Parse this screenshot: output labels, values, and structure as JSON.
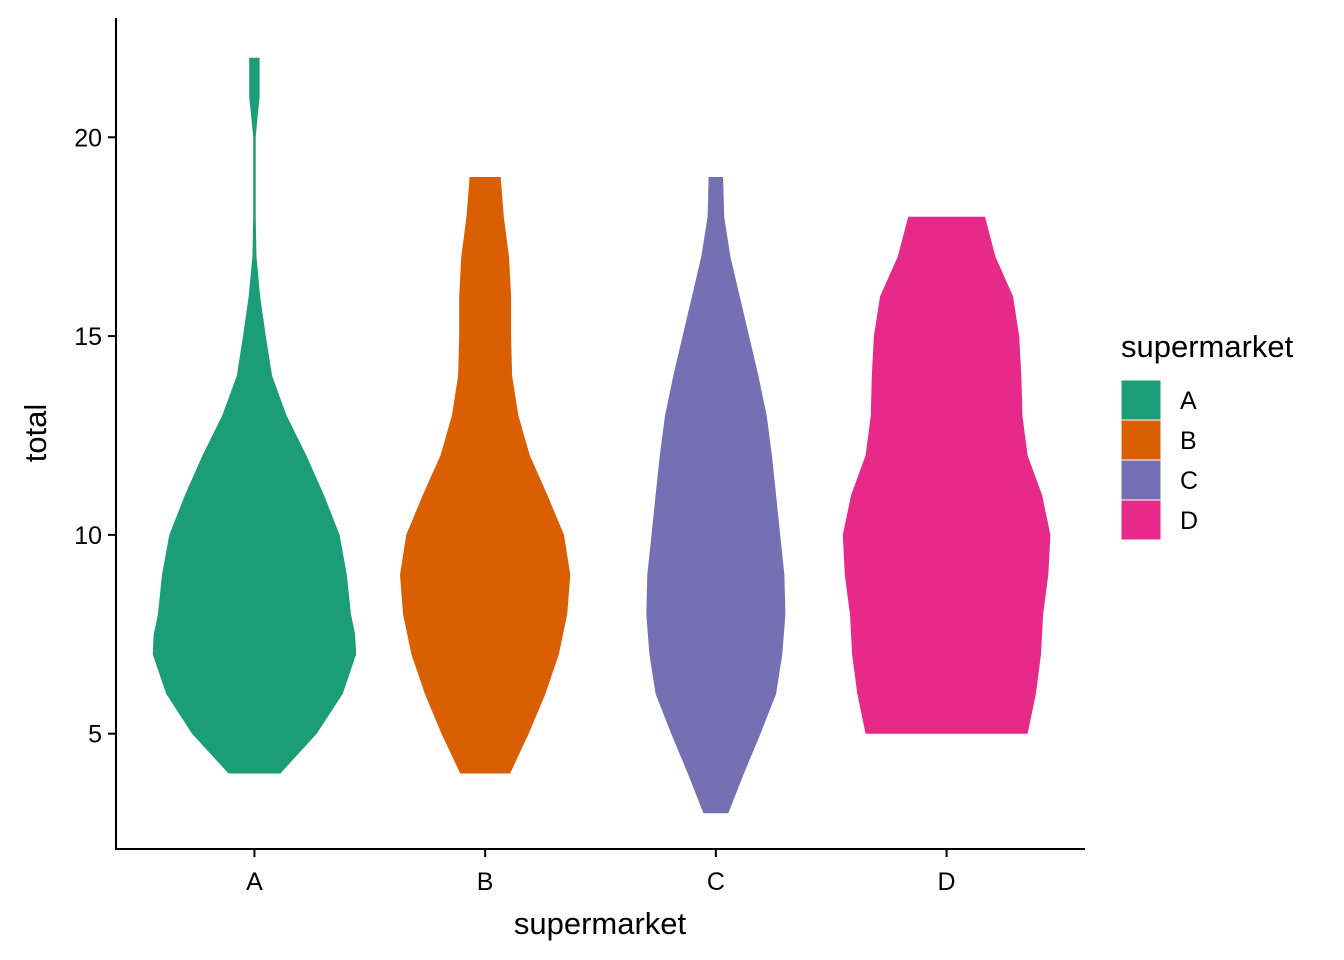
{
  "chart_data": {
    "type": "violin",
    "xlabel": "supermarket",
    "ylabel": "total",
    "categories": [
      "A",
      "B",
      "C",
      "D"
    ],
    "ylim": [
      2.1,
      23.0
    ],
    "yticks": [
      5,
      10,
      15,
      20
    ],
    "grid": false,
    "legend": {
      "title": "supermarket",
      "placement": "right",
      "entries": [
        "A",
        "B",
        "C",
        "D"
      ]
    },
    "colors": {
      "A": "#1B9E77",
      "B": "#D95F02",
      "C": "#7570B3",
      "D": "#E7298A"
    },
    "series": [
      {
        "category": "A",
        "min": 4,
        "max": 22,
        "profile": [
          [
            4,
            0.25
          ],
          [
            5,
            0.6
          ],
          [
            6,
            0.85
          ],
          [
            7,
            0.98
          ],
          [
            7.5,
            0.97
          ],
          [
            8,
            0.93
          ],
          [
            9,
            0.89
          ],
          [
            10,
            0.82
          ],
          [
            11,
            0.67
          ],
          [
            12,
            0.5
          ],
          [
            13,
            0.31
          ],
          [
            14,
            0.17
          ],
          [
            15,
            0.11
          ],
          [
            16,
            0.055
          ],
          [
            17,
            0.02
          ],
          [
            18,
            0.012
          ],
          [
            19,
            0.012
          ],
          [
            20,
            0.012
          ],
          [
            20.5,
            0.03
          ],
          [
            21,
            0.05
          ],
          [
            22,
            0.05
          ]
        ]
      },
      {
        "category": "B",
        "min": 4,
        "max": 19,
        "profile": [
          [
            4,
            0.24
          ],
          [
            5,
            0.42
          ],
          [
            6,
            0.58
          ],
          [
            7,
            0.71
          ],
          [
            8,
            0.79
          ],
          [
            9,
            0.82
          ],
          [
            10,
            0.76
          ],
          [
            11,
            0.6
          ],
          [
            12,
            0.43
          ],
          [
            13,
            0.32
          ],
          [
            14,
            0.26
          ],
          [
            15,
            0.25
          ],
          [
            16,
            0.25
          ],
          [
            17,
            0.23
          ],
          [
            18,
            0.18
          ],
          [
            19,
            0.15
          ]
        ]
      },
      {
        "category": "C",
        "min": 3,
        "max": 19,
        "profile": [
          [
            3,
            0.12
          ],
          [
            4,
            0.27
          ],
          [
            5,
            0.43
          ],
          [
            6,
            0.58
          ],
          [
            7,
            0.64
          ],
          [
            8,
            0.67
          ],
          [
            9,
            0.66
          ],
          [
            10,
            0.62
          ],
          [
            11,
            0.58
          ],
          [
            12,
            0.54
          ],
          [
            13,
            0.49
          ],
          [
            14,
            0.41
          ],
          [
            15,
            0.32
          ],
          [
            16,
            0.23
          ],
          [
            17,
            0.14
          ],
          [
            18,
            0.08
          ],
          [
            19,
            0.07
          ]
        ]
      },
      {
        "category": "D",
        "min": 5,
        "max": 18,
        "profile": [
          [
            5,
            0.78
          ],
          [
            6,
            0.86
          ],
          [
            7,
            0.91
          ],
          [
            8,
            0.93
          ],
          [
            9,
            0.98
          ],
          [
            10,
            1.0
          ],
          [
            11,
            0.92
          ],
          [
            12,
            0.78
          ],
          [
            13,
            0.73
          ],
          [
            14,
            0.72
          ],
          [
            15,
            0.7
          ],
          [
            16,
            0.64
          ],
          [
            17,
            0.47
          ],
          [
            18,
            0.37
          ]
        ]
      }
    ]
  }
}
